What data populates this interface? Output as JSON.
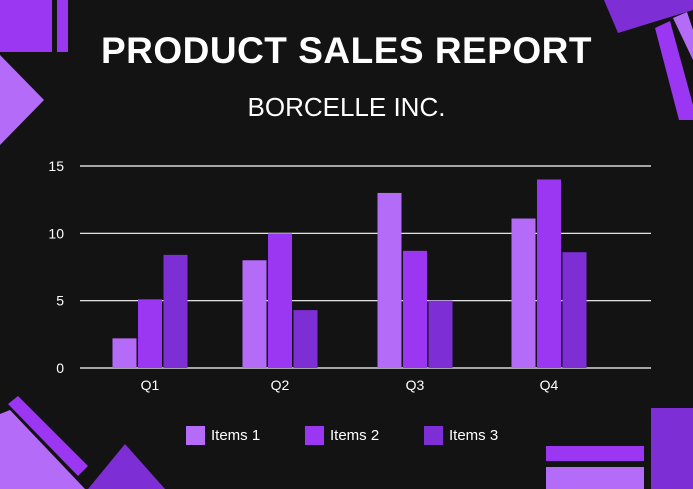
{
  "header": {
    "title": "PRODUCT SALES REPORT",
    "subtitle": "BORCELLE INC."
  },
  "colors": {
    "background": "#141313",
    "series": [
      "#b46cf8",
      "#9b36f2",
      "#7d2ed4"
    ],
    "decor_light": "#b46cf8",
    "decor_mid": "#9b36f2",
    "decor_dark": "#6a25c0",
    "grid": "#ffffff"
  },
  "chart_data": {
    "type": "bar",
    "categories": [
      "Q1",
      "Q2",
      "Q3",
      "Q4"
    ],
    "series": [
      {
        "name": "Items 1",
        "values": [
          2.2,
          8.0,
          13.0,
          11.1
        ]
      },
      {
        "name": "Items 2",
        "values": [
          5.1,
          10.0,
          8.7,
          14.0
        ]
      },
      {
        "name": "Items 3",
        "values": [
          8.4,
          4.3,
          5.0,
          8.6
        ]
      }
    ],
    "title": "",
    "xlabel": "",
    "ylabel": "",
    "ylim": [
      0,
      15
    ],
    "yticks": [
      0,
      5,
      10,
      15
    ],
    "grid": true,
    "legend_position": "bottom"
  }
}
